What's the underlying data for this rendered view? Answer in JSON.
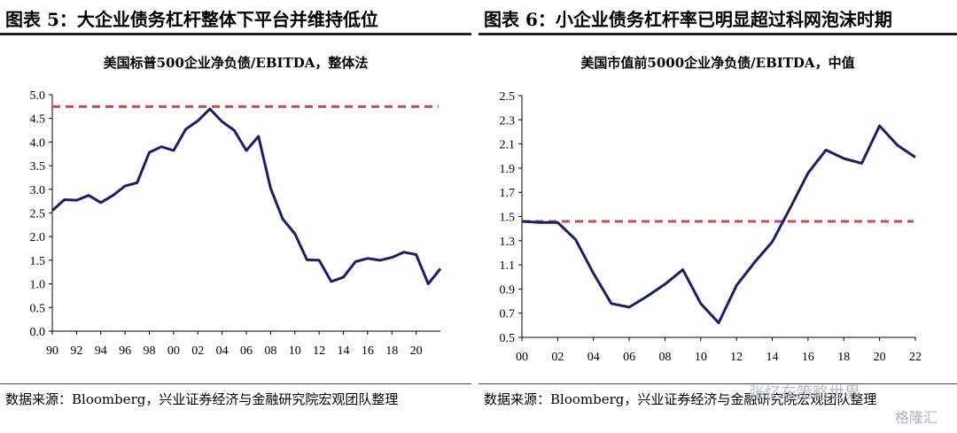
{
  "panels": [
    {
      "figure_title": "图表 5：大企业债务杠杆整体下平台并维持低位",
      "source": "数据来源：Bloomberg，兴业证券经济与金融研究院宏观团队整理"
    },
    {
      "figure_title": "图表 6：小企业债务杠杆率已明显超过科网泡沫时期",
      "source": "数据来源：Bloomberg，兴业证券经济与金融研究院宏观团队整理"
    }
  ],
  "watermark": {
    "text": "张忆东策略世界",
    "logo": "格隆汇"
  },
  "colors": {
    "line": "#1a1d6b",
    "dashed": "#c0504d",
    "axis": "#000000"
  },
  "chart_data": [
    {
      "type": "line",
      "title": "美国标普500企业净负债/EBITDA，整体法",
      "xlabel": "",
      "ylabel": "",
      "x": [
        1990,
        1991,
        1992,
        1993,
        1994,
        1995,
        1996,
        1997,
        1998,
        1999,
        2000,
        2001,
        2002,
        2003,
        2004,
        2005,
        2006,
        2007,
        2008,
        2009,
        2010,
        2011,
        2012,
        2013,
        2014,
        2015,
        2016,
        2017,
        2018,
        2019,
        2020,
        2021,
        2022
      ],
      "series": [
        {
          "values": [
            2.55,
            2.78,
            2.77,
            2.87,
            2.72,
            2.87,
            3.07,
            3.14,
            3.78,
            3.9,
            3.82,
            4.27,
            4.45,
            4.7,
            4.43,
            4.25,
            3.82,
            4.12,
            3.02,
            2.37,
            2.06,
            1.51,
            1.5,
            1.05,
            1.14,
            1.47,
            1.54,
            1.5,
            1.56,
            1.67,
            1.62,
            1.0,
            1.32
          ]
        }
      ],
      "reference_line": 4.75,
      "xticks": [
        "90",
        "92",
        "94",
        "96",
        "98",
        "00",
        "02",
        "04",
        "06",
        "08",
        "10",
        "12",
        "14",
        "16",
        "18",
        "20"
      ],
      "yticks": [
        "0.0",
        "0.5",
        "1.0",
        "1.5",
        "2.0",
        "2.5",
        "3.0",
        "3.5",
        "4.0",
        "4.5",
        "5.0"
      ],
      "xlim": [
        1990,
        2022
      ],
      "ylim": [
        0,
        5
      ],
      "grid": false,
      "legend": "none"
    },
    {
      "type": "line",
      "title": "美国市值前5000企业净负债/EBITDA，中值",
      "xlabel": "",
      "ylabel": "",
      "x": [
        2000,
        2001,
        2002,
        2003,
        2004,
        2005,
        2006,
        2007,
        2008,
        2009,
        2010,
        2011,
        2012,
        2013,
        2014,
        2015,
        2016,
        2017,
        2018,
        2019,
        2020,
        2021,
        2022
      ],
      "series": [
        {
          "values": [
            1.46,
            1.45,
            1.45,
            1.31,
            1.03,
            0.78,
            0.75,
            0.84,
            0.94,
            1.06,
            0.78,
            0.62,
            0.93,
            1.12,
            1.29,
            1.57,
            1.86,
            2.05,
            1.98,
            1.94,
            2.25,
            2.09,
            1.99
          ]
        }
      ],
      "reference_line": 1.46,
      "xticks": [
        "00",
        "02",
        "04",
        "06",
        "08",
        "10",
        "12",
        "14",
        "16",
        "18",
        "20",
        "22"
      ],
      "yticks": [
        "0.5",
        "0.7",
        "0.9",
        "1.1",
        "1.3",
        "1.5",
        "1.7",
        "1.9",
        "2.1",
        "2.3",
        "2.5"
      ],
      "xlim": [
        2000,
        2022
      ],
      "ylim": [
        0.5,
        2.5
      ],
      "grid": false,
      "legend": "none"
    }
  ]
}
